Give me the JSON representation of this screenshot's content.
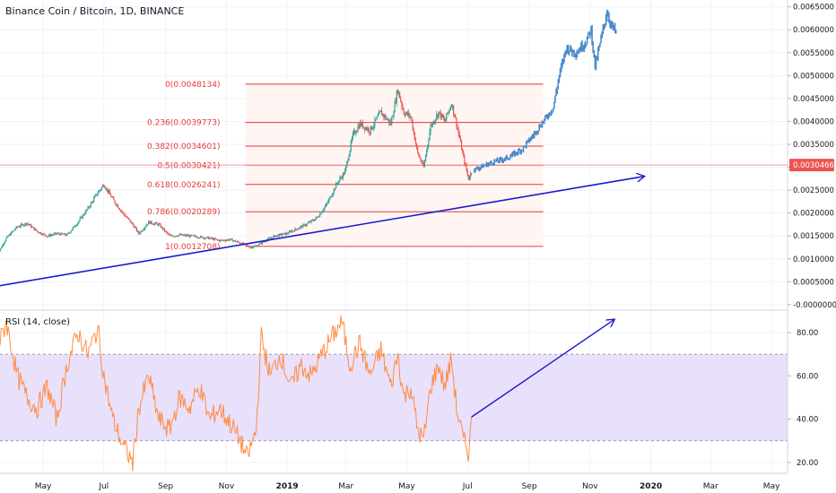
{
  "title": "Binance Coin / Bitcoin, 1D, BINANCE",
  "chart_data": [
    {
      "type": "candlestick",
      "title": "Binance Coin / Bitcoin, 1D, BINANCE",
      "ylim": [
        -0.0001,
        0.00665
      ],
      "y_ticks": [
        "0.0065000",
        "0.0060000",
        "0.0055000",
        "0.0050000",
        "0.0045000",
        "0.0040000",
        "0.0035000",
        "0.0030000",
        "0.0025000",
        "0.0020000",
        "0.0015000",
        "0.0010000",
        "0.0005000",
        "-0.0000000"
      ],
      "y_tick_values": [
        0.0065,
        0.006,
        0.0055,
        0.005,
        0.0045,
        0.004,
        0.0035,
        0.003,
        0.0025,
        0.002,
        0.0015,
        0.001,
        0.0005,
        0.0
      ],
      "x_ticks": [
        "May",
        "Jul",
        "Sep",
        "Nov",
        "2019",
        "Mar",
        "May",
        "Jul",
        "Sep",
        "Nov",
        "2020",
        "Mar",
        "May"
      ],
      "x_tick_dates": [
        "2018-05-01",
        "2018-07-01",
        "2018-09-01",
        "2018-11-01",
        "2019-01-01",
        "2019-03-01",
        "2019-05-01",
        "2019-07-01",
        "2019-09-01",
        "2019-11-01",
        "2020-01-01",
        "2020-03-01",
        "2020-05-01"
      ],
      "current_price_label": "0.0030466",
      "current_price": 0.0030466,
      "historical_series": {
        "name": "",
        "color_up": "#26a69a",
        "color_down": "#ef5350",
        "points": [
          [
            "2018-03-15",
            0.00105
          ],
          [
            "2018-03-25",
            0.00145
          ],
          [
            "2018-04-05",
            0.0017
          ],
          [
            "2018-04-15",
            0.00178
          ],
          [
            "2018-04-25",
            0.0016
          ],
          [
            "2018-05-05",
            0.0015
          ],
          [
            "2018-05-15",
            0.00155
          ],
          [
            "2018-05-25",
            0.00152
          ],
          [
            "2018-06-05",
            0.0018
          ],
          [
            "2018-06-15",
            0.0021
          ],
          [
            "2018-06-25",
            0.00245
          ],
          [
            "2018-07-01",
            0.00262
          ],
          [
            "2018-07-10",
            0.0023
          ],
          [
            "2018-07-20",
            0.002
          ],
          [
            "2018-07-30",
            0.00175
          ],
          [
            "2018-08-05",
            0.00155
          ],
          [
            "2018-08-15",
            0.0018
          ],
          [
            "2018-08-25",
            0.00175
          ],
          [
            "2018-09-05",
            0.0015
          ],
          [
            "2018-09-15",
            0.00152
          ],
          [
            "2018-09-25",
            0.0015
          ],
          [
            "2018-10-05",
            0.00148
          ],
          [
            "2018-10-15",
            0.00145
          ],
          [
            "2018-10-25",
            0.0014
          ],
          [
            "2018-11-05",
            0.00142
          ],
          [
            "2018-11-15",
            0.00135
          ],
          [
            "2018-11-25",
            0.00125
          ],
          [
            "2018-12-01",
            0.00128
          ],
          [
            "2018-12-10",
            0.0014
          ],
          [
            "2018-12-20",
            0.0015
          ],
          [
            "2018-12-31",
            0.00155
          ],
          [
            "2019-01-10",
            0.00165
          ],
          [
            "2019-01-20",
            0.00175
          ],
          [
            "2019-01-31",
            0.0019
          ],
          [
            "2019-02-10",
            0.0022
          ],
          [
            "2019-02-20",
            0.00265
          ],
          [
            "2019-02-28",
            0.0029
          ],
          [
            "2019-03-08",
            0.0037
          ],
          [
            "2019-03-15",
            0.00395
          ],
          [
            "2019-03-25",
            0.0038
          ],
          [
            "2019-04-05",
            0.0042
          ],
          [
            "2019-04-15",
            0.00395
          ],
          [
            "2019-04-22",
            0.0047
          ],
          [
            "2019-04-28",
            0.0042
          ],
          [
            "2019-05-05",
            0.0041
          ],
          [
            "2019-05-12",
            0.0033
          ],
          [
            "2019-05-18",
            0.003
          ],
          [
            "2019-05-25",
            0.0039
          ],
          [
            "2019-06-02",
            0.0042
          ],
          [
            "2019-06-08",
            0.004
          ],
          [
            "2019-06-15",
            0.0044
          ],
          [
            "2019-06-20",
            0.00395
          ],
          [
            "2019-06-27",
            0.0032
          ],
          [
            "2019-07-02",
            0.00275
          ],
          [
            "2019-07-06",
            0.00295
          ]
        ]
      },
      "projected_series": {
        "name": "",
        "color": "#4a8ac9",
        "points": [
          [
            "2019-07-08",
            0.00295
          ],
          [
            "2019-07-25",
            0.0031
          ],
          [
            "2019-08-10",
            0.0032
          ],
          [
            "2019-08-25",
            0.0034
          ],
          [
            "2019-09-05",
            0.0037
          ],
          [
            "2019-09-15",
            0.004
          ],
          [
            "2019-09-25",
            0.0043
          ],
          [
            "2019-10-01",
            0.005
          ],
          [
            "2019-10-08",
            0.0056
          ],
          [
            "2019-10-18",
            0.0055
          ],
          [
            "2019-10-28",
            0.00575
          ],
          [
            "2019-11-02",
            0.006
          ],
          [
            "2019-11-06",
            0.0052
          ],
          [
            "2019-11-12",
            0.0058
          ],
          [
            "2019-11-18",
            0.0064
          ],
          [
            "2019-11-22",
            0.0061
          ],
          [
            "2019-11-28",
            0.0059
          ]
        ]
      },
      "fibonacci": {
        "start": "2018-11-20",
        "end": "2019-09-15",
        "color": "#e53935",
        "levels": [
          {
            "label": "0(0.0048134)",
            "value": 0.0048134
          },
          {
            "label": "0.236(0.0039773)",
            "value": 0.0039773
          },
          {
            "label": "0.382(0.0034601)",
            "value": 0.0034601
          },
          {
            "label": "0.5(0.0030421)",
            "value": 0.0030421
          },
          {
            "label": "0.618(0.0026241)",
            "value": 0.0026241
          },
          {
            "label": "0.786(0.0020289)",
            "value": 0.0020289
          },
          {
            "label": "1(0.0012708)",
            "value": 0.0012708
          }
        ]
      },
      "trendline": {
        "color": "#1a1acf",
        "from": [
          "2018-03-15",
          0.0004
        ],
        "to": [
          "2019-12-25",
          0.0028
        ]
      },
      "horizontal_line": {
        "value": 0.0030466,
        "color": "#ef9a9a"
      }
    },
    {
      "type": "line",
      "title": "RSI (14, close)",
      "ylim": [
        15,
        90
      ],
      "y_ticks": [
        "80.00",
        "60.00",
        "40.00",
        "20.00"
      ],
      "y_tick_values": [
        80,
        60,
        40,
        20
      ],
      "band": {
        "upper": 70,
        "lower": 30,
        "color": "#e9e0fb"
      },
      "series": [
        {
          "name": "RSI",
          "color": "#ff8c42",
          "points": [
            [
              "2018-03-15",
              70
            ],
            [
              "2018-03-25",
              85
            ],
            [
              "2018-04-05",
              60
            ],
            [
              "2018-04-15",
              50
            ],
            [
              "2018-04-25",
              45
            ],
            [
              "2018-05-05",
              55
            ],
            [
              "2018-05-15",
              40
            ],
            [
              "2018-05-25",
              65
            ],
            [
              "2018-06-05",
              80
            ],
            [
              "2018-06-15",
              70
            ],
            [
              "2018-06-25",
              82
            ],
            [
              "2018-07-01",
              60
            ],
            [
              "2018-07-10",
              40
            ],
            [
              "2018-07-20",
              28
            ],
            [
              "2018-07-30",
              20
            ],
            [
              "2018-08-05",
              45
            ],
            [
              "2018-08-15",
              60
            ],
            [
              "2018-08-25",
              40
            ],
            [
              "2018-09-05",
              35
            ],
            [
              "2018-09-15",
              50
            ],
            [
              "2018-09-25",
              45
            ],
            [
              "2018-10-05",
              55
            ],
            [
              "2018-10-15",
              40
            ],
            [
              "2018-10-25",
              45
            ],
            [
              "2018-11-05",
              38
            ],
            [
              "2018-11-15",
              30
            ],
            [
              "2018-11-22",
              22
            ],
            [
              "2018-12-01",
              35
            ],
            [
              "2018-12-06",
              78
            ],
            [
              "2018-12-15",
              60
            ],
            [
              "2018-12-25",
              70
            ],
            [
              "2019-01-05",
              55
            ],
            [
              "2019-01-15",
              65
            ],
            [
              "2019-01-25",
              60
            ],
            [
              "2019-02-05",
              70
            ],
            [
              "2019-02-15",
              78
            ],
            [
              "2019-02-25",
              85
            ],
            [
              "2019-03-05",
              65
            ],
            [
              "2019-03-15",
              75
            ],
            [
              "2019-03-25",
              60
            ],
            [
              "2019-04-05",
              72
            ],
            [
              "2019-04-15",
              55
            ],
            [
              "2019-04-22",
              70
            ],
            [
              "2019-04-28",
              50
            ],
            [
              "2019-05-05",
              55
            ],
            [
              "2019-05-12",
              35
            ],
            [
              "2019-05-18",
              30
            ],
            [
              "2019-05-25",
              55
            ],
            [
              "2019-06-02",
              65
            ],
            [
              "2019-06-08",
              55
            ],
            [
              "2019-06-15",
              68
            ],
            [
              "2019-06-20",
              45
            ],
            [
              "2019-06-27",
              30
            ],
            [
              "2019-07-02",
              25
            ],
            [
              "2019-07-06",
              42
            ]
          ]
        }
      ],
      "arrow": {
        "color": "#1a1acf",
        "from": [
          "2019-07-05",
          41
        ],
        "to": [
          "2019-11-25",
          86
        ]
      }
    }
  ]
}
